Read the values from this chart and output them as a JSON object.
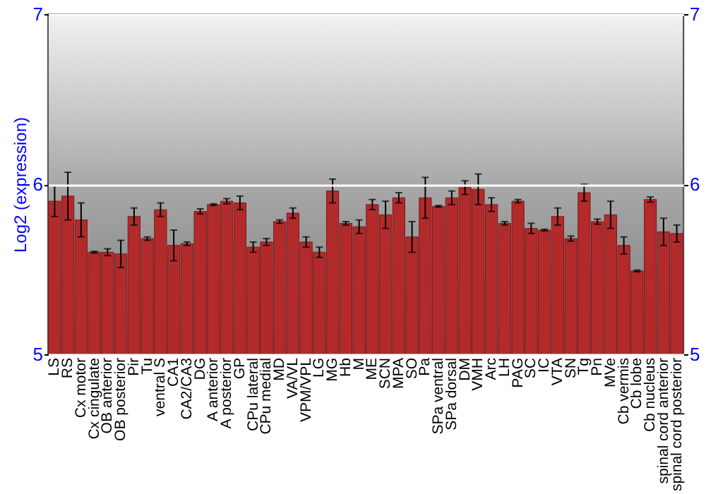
{
  "chart_data": {
    "type": "bar",
    "ylabel": "Log2 (expression)",
    "categories": [
      "LS",
      "RS",
      "Cx motor",
      "Cx cingulate",
      "OB anterior",
      "OB posterior",
      "Pir",
      "Tu",
      "ventral S",
      "CA1",
      "CA2/CA3",
      "DG",
      "A anterior",
      "A posterior",
      "GP",
      "CPu lateral",
      "CPu medial",
      "MD",
      "VA/VL",
      "VPM/VPL",
      "LG",
      "MG",
      "Hb",
      "M",
      "ME",
      "SCN",
      "MPA",
      "SO",
      "Pa",
      "SPa ventral",
      "SPa dorsal",
      "DM",
      "VMH",
      "Arc",
      "LH",
      "PAG",
      "SC",
      "IC",
      "VTA",
      "SN",
      "Tg",
      "Pn",
      "MVe",
      "Cb vermis",
      "Cb lobe",
      "Cb nucleus",
      "spinal cord anterior",
      "spinal cord posterior"
    ],
    "values": [
      5.9,
      5.93,
      5.79,
      5.6,
      5.6,
      5.59,
      5.81,
      5.68,
      5.85,
      5.64,
      5.65,
      5.84,
      5.88,
      5.9,
      5.89,
      5.63,
      5.66,
      5.78,
      5.83,
      5.66,
      5.6,
      5.96,
      5.77,
      5.75,
      5.88,
      5.82,
      5.92,
      5.69,
      5.92,
      5.87,
      5.92,
      5.98,
      5.97,
      5.88,
      5.77,
      5.9,
      5.74,
      5.73,
      5.81,
      5.68,
      5.95,
      5.78,
      5.82,
      5.64,
      5.49,
      5.91,
      5.72,
      5.71
    ],
    "errors": [
      0.09,
      0.14,
      0.1,
      0.005,
      0.02,
      0.08,
      0.05,
      0.01,
      0.04,
      0.09,
      0.01,
      0.015,
      0.005,
      0.015,
      0.04,
      0.03,
      0.02,
      0.01,
      0.03,
      0.03,
      0.03,
      0.07,
      0.01,
      0.04,
      0.03,
      0.08,
      0.03,
      0.09,
      0.12,
      0.005,
      0.04,
      0.04,
      0.09,
      0.04,
      0.01,
      0.01,
      0.03,
      0.005,
      0.05,
      0.015,
      0.05,
      0.015,
      0.08,
      0.05,
      0.005,
      0.015,
      0.08,
      0.05
    ],
    "color": "#b22a2a",
    "ylim": [
      5,
      7
    ],
    "yticks": [
      5,
      6,
      7
    ],
    "y2lim": [
      5,
      7
    ],
    "y2ticks": [
      5,
      6,
      7
    ],
    "grid": "y"
  }
}
